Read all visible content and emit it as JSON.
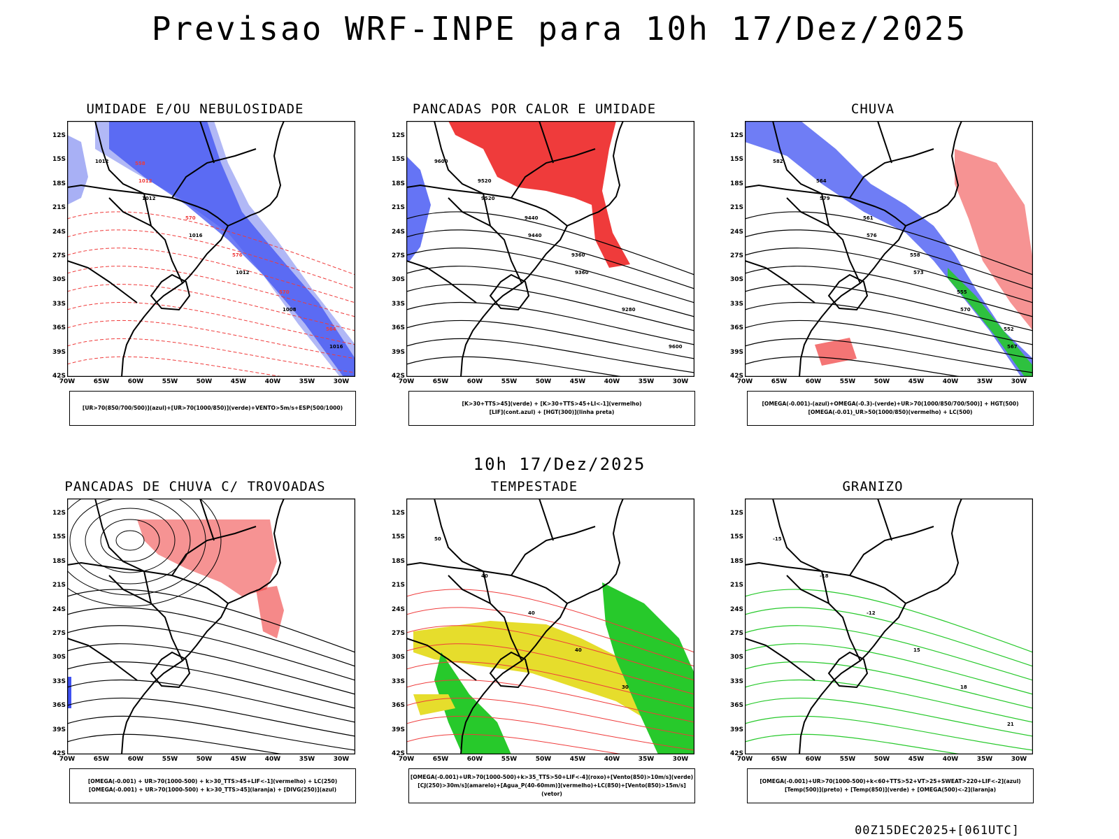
{
  "header": {
    "title": "Previsao WRF-INPE  para 10h 17/Dez/2025"
  },
  "mid_title": "10h 17/Dez/2025",
  "footer": "00Z15DEC2025+[061UTC]",
  "axes": {
    "lat_labels": [
      "12S",
      "15S",
      "18S",
      "21S",
      "24S",
      "27S",
      "30S",
      "33S",
      "36S",
      "39S",
      "42S"
    ],
    "lon_labels": [
      "70W",
      "65W",
      "60W",
      "55W",
      "50W",
      "45W",
      "40W",
      "35W",
      "30W"
    ]
  },
  "panels": [
    {
      "title": "UMIDADE E/OU NEBULOSIDADE",
      "legend": [
        "[UR>70(850/700/500)](azul)+[UR>70(1000/850)](verde)+VENTO>5m/s+ESP(500/1000)"
      ],
      "contour_labels": [
        "1012",
        "1012",
        "1016",
        "1012",
        "1008",
        "1016",
        "1012",
        "570",
        "576",
        "570",
        "564",
        "558"
      ]
    },
    {
      "title": "PANCADAS POR CALOR E UMIDADE",
      "legend": [
        "[K>30+TTS>45](verde) + [K>30+TTS>45+LI<-1](vermelho)",
        "[LIF](cont.azul) + [HGT(300)](linha preta)"
      ],
      "contour_labels": [
        "9600",
        "9520",
        "9440",
        "9360",
        "9280",
        "9600",
        "9520",
        "9440",
        "9360"
      ]
    },
    {
      "title": "CHUVA",
      "legend": [
        "[OMEGA(-0.001)-(azul)+OMEGA(-0.3)-(verde)+UR>70(1000/850/700/500)] + HGT(500)",
        "[OMEGA(-0.01)_UR>50(1000/850)(vermelho) + LC(500)"
      ],
      "contour_labels": [
        "582",
        "579",
        "576",
        "573",
        "570",
        "567",
        "564",
        "561",
        "558",
        "555",
        "552"
      ]
    },
    {
      "title": "PANCADAS DE CHUVA C/ TROVOADAS",
      "legend": [
        "[OMEGA(-0.001) + UR>70(1000-500) + k>30_TTS>45+LIF<-1](vermelho) + LC(250)",
        "[OMEGA(-0.001) + UR>70(1000-500) + k>30_TTS>45](laranja) + [DIVG(250)](azul)"
      ],
      "contour_labels": []
    },
    {
      "title": "TEMPESTADE",
      "legend": [
        "[OMEGA(-0.001)+UR>70(1000-500)+k>35_TTS>50+LIF<-4](roxo)+[Vento(850)>10m/s](verde)",
        "[CJ(250)>30m/s](amarelo)+[Agua_P(40-60mm)](vermelho)+LC(850)+[Vento(850)>15m/s](vetor)"
      ],
      "contour_labels": [
        "50",
        "40",
        "40",
        "40",
        "30"
      ]
    },
    {
      "title": "GRANIZO",
      "legend": [
        "[OMEGA(-0.001)+UR>70(1000-500)+k<60+TTS>52+VT>25+SWEAT>220+LIF<-2](azul)",
        "[Temp(500)](preto) + [Temp(850)](verde) + [OMEGA(500)<-2](laranja)"
      ],
      "contour_labels": [
        "-15",
        "-18",
        "-12",
        "15",
        "18",
        "21"
      ]
    }
  ],
  "colors": {
    "blue": "#3f51f2",
    "lightblue": "#a8b0f5",
    "green": "#27c92b",
    "red": "#ef3b3b",
    "yellow": "#e6dd2c",
    "orange": "#f28c35",
    "darkgreen": "#3d7a6a"
  }
}
